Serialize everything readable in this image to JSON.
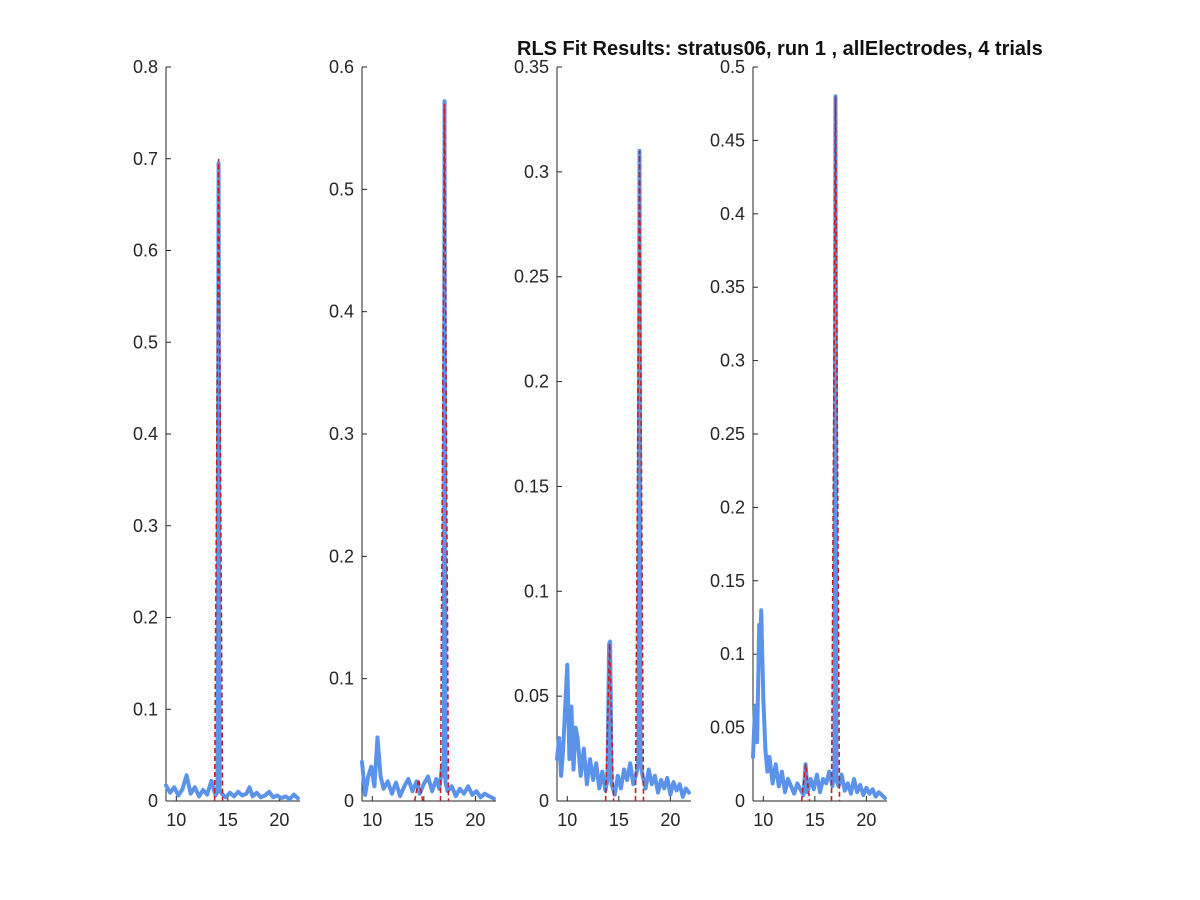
{
  "title": "RLS Fit Results: stratus06, run 1 , allElectrodes, 4 trials",
  "colors": {
    "measured": "#5b93eb",
    "fit": "#c4202a",
    "axis": "#262626"
  },
  "chart_data": [
    {
      "type": "line",
      "xlim": [
        9,
        22
      ],
      "ylim": [
        0,
        0.8
      ],
      "x_ticks": [
        "10",
        "15",
        "20"
      ],
      "y_ticks": [
        "0",
        "0.1",
        "0.2",
        "0.3",
        "0.4",
        "0.5",
        "0.6",
        "0.7",
        "0.8"
      ],
      "peaks": [
        {
          "x": 14.1,
          "y": 0.7
        }
      ],
      "series": [
        {
          "x": [
            9.0,
            9.4,
            9.8,
            10.2,
            10.6,
            11.0,
            11.4,
            11.8,
            12.2,
            12.6,
            13.0,
            13.4,
            13.8,
            14.0,
            14.1,
            14.2,
            14.4,
            14.8,
            15.2,
            15.6,
            16.0,
            16.4,
            16.8,
            17.1,
            17.4,
            17.8,
            18.2,
            18.6,
            19.0,
            19.4,
            19.8,
            20.2,
            20.6,
            21.0,
            21.4,
            21.8
          ],
          "values": [
            0.017,
            0.009,
            0.015,
            0.006,
            0.013,
            0.028,
            0.008,
            0.015,
            0.005,
            0.012,
            0.007,
            0.022,
            0.006,
            0.01,
            0.695,
            0.012,
            0.008,
            0.004,
            0.009,
            0.005,
            0.01,
            0.006,
            0.008,
            0.015,
            0.005,
            0.009,
            0.004,
            0.006,
            0.01,
            0.004,
            0.006,
            0.003,
            0.005,
            0.002,
            0.007,
            0.003
          ]
        }
      ]
    },
    {
      "type": "line",
      "xlim": [
        9,
        22
      ],
      "ylim": [
        0,
        0.6
      ],
      "x_ticks": [
        "10",
        "15",
        "20"
      ],
      "y_ticks": [
        "0",
        "0.1",
        "0.2",
        "0.3",
        "0.4",
        "0.5",
        "0.6"
      ],
      "peaks": [
        {
          "x": 14.5,
          "y": 0.018
        },
        {
          "x": 17.0,
          "y": 0.57
        }
      ],
      "series": [
        {
          "x": [
            9.0,
            9.3,
            9.6,
            9.9,
            10.2,
            10.5,
            10.8,
            11.1,
            11.5,
            11.9,
            12.3,
            12.7,
            13.1,
            13.5,
            13.9,
            14.3,
            14.6,
            15.0,
            15.4,
            15.8,
            16.2,
            16.5,
            16.8,
            16.95,
            17.0,
            17.1,
            17.3,
            17.7,
            18.1,
            18.5,
            18.9,
            19.3,
            19.7,
            20.1,
            20.5,
            20.9,
            21.3,
            21.8
          ],
          "values": [
            0.032,
            0.005,
            0.02,
            0.028,
            0.012,
            0.052,
            0.02,
            0.01,
            0.016,
            0.006,
            0.015,
            0.004,
            0.012,
            0.018,
            0.008,
            0.016,
            0.006,
            0.014,
            0.02,
            0.008,
            0.018,
            0.01,
            0.03,
            0.02,
            0.572,
            0.015,
            0.008,
            0.012,
            0.004,
            0.01,
            0.006,
            0.012,
            0.005,
            0.008,
            0.003,
            0.006,
            0.004,
            0.002
          ]
        }
      ]
    },
    {
      "type": "line",
      "xlim": [
        9,
        22
      ],
      "ylim": [
        0,
        0.35
      ],
      "x_ticks": [
        "10",
        "15",
        "20"
      ],
      "y_ticks": [
        "0",
        "0.05",
        "0.1",
        "0.15",
        "0.2",
        "0.25",
        "0.3",
        "0.35"
      ],
      "peaks": [
        {
          "x": 14.1,
          "y": 0.075
        },
        {
          "x": 17.0,
          "y": 0.31
        }
      ],
      "series": [
        {
          "x": [
            9.0,
            9.2,
            9.4,
            9.6,
            9.8,
            10.0,
            10.2,
            10.4,
            10.6,
            10.8,
            11.0,
            11.3,
            11.6,
            11.9,
            12.2,
            12.5,
            12.8,
            13.1,
            13.4,
            13.7,
            13.9,
            14.05,
            14.15,
            14.3,
            14.6,
            14.9,
            15.2,
            15.5,
            15.8,
            16.1,
            16.4,
            16.7,
            16.9,
            17.0,
            17.1,
            17.3,
            17.6,
            17.9,
            18.2,
            18.5,
            18.8,
            19.1,
            19.4,
            19.7,
            20.0,
            20.3,
            20.6,
            20.9,
            21.2,
            21.5,
            21.8
          ],
          "values": [
            0.02,
            0.03,
            0.012,
            0.025,
            0.045,
            0.065,
            0.02,
            0.045,
            0.015,
            0.035,
            0.03,
            0.012,
            0.025,
            0.008,
            0.02,
            0.01,
            0.018,
            0.006,
            0.014,
            0.005,
            0.01,
            0.075,
            0.076,
            0.008,
            0.003,
            0.012,
            0.006,
            0.015,
            0.01,
            0.018,
            0.008,
            0.013,
            0.02,
            0.31,
            0.018,
            0.012,
            0.006,
            0.015,
            0.008,
            0.012,
            0.004,
            0.01,
            0.006,
            0.011,
            0.003,
            0.009,
            0.005,
            0.008,
            0.002,
            0.006,
            0.004
          ]
        }
      ]
    },
    {
      "type": "line",
      "xlim": [
        9,
        22
      ],
      "ylim": [
        0,
        0.5
      ],
      "x_ticks": [
        "10",
        "15",
        "20"
      ],
      "y_ticks": [
        "0",
        "0.05",
        "0.1",
        "0.15",
        "0.2",
        "0.25",
        "0.3",
        "0.35",
        "0.4",
        "0.45",
        "0.5"
      ],
      "peaks": [
        {
          "x": 14.1,
          "y": 0.025
        },
        {
          "x": 17.0,
          "y": 0.48
        }
      ],
      "series": [
        {
          "x": [
            9.0,
            9.2,
            9.4,
            9.6,
            9.7,
            9.8,
            10.0,
            10.2,
            10.4,
            10.6,
            10.9,
            11.2,
            11.5,
            11.8,
            12.1,
            12.4,
            12.7,
            13.0,
            13.3,
            13.6,
            13.9,
            14.1,
            14.3,
            14.6,
            14.9,
            15.2,
            15.5,
            15.8,
            16.1,
            16.4,
            16.7,
            16.9,
            17.0,
            17.1,
            17.3,
            17.6,
            17.9,
            18.2,
            18.5,
            18.8,
            19.1,
            19.4,
            19.7,
            20.0,
            20.3,
            20.6,
            20.9,
            21.2,
            21.5,
            21.8
          ],
          "values": [
            0.03,
            0.065,
            0.04,
            0.12,
            0.1,
            0.13,
            0.07,
            0.035,
            0.02,
            0.03,
            0.012,
            0.025,
            0.01,
            0.02,
            0.006,
            0.015,
            0.01,
            0.005,
            0.012,
            0.008,
            0.004,
            0.025,
            0.006,
            0.015,
            0.008,
            0.018,
            0.006,
            0.015,
            0.012,
            0.02,
            0.01,
            0.022,
            0.48,
            0.014,
            0.01,
            0.018,
            0.007,
            0.012,
            0.005,
            0.015,
            0.006,
            0.011,
            0.004,
            0.009,
            0.005,
            0.008,
            0.003,
            0.006,
            0.004,
            0.002
          ]
        }
      ]
    }
  ]
}
